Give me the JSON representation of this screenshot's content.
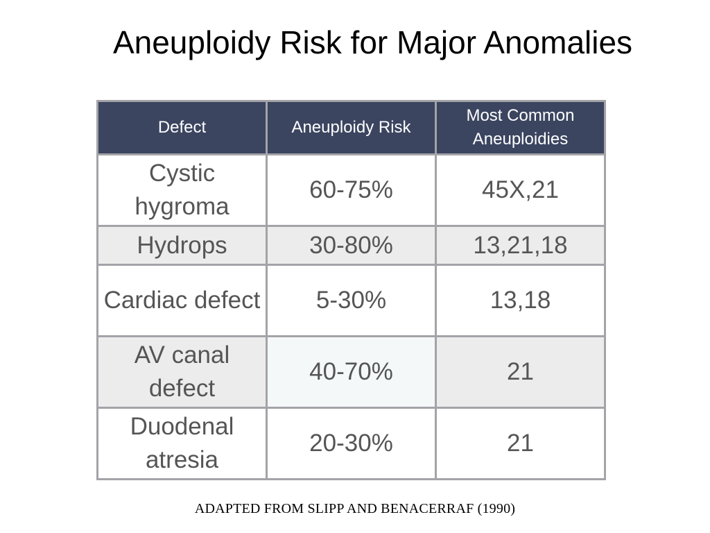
{
  "title": "Aneuploidy Risk for Major Anomalies",
  "table": {
    "headers": [
      "Defect",
      "Aneuploidy Risk",
      "Most Common Aneuploidies"
    ],
    "rows": [
      {
        "defect": "Cystic hygroma",
        "risk": "60-75%",
        "aneuploidies": "45X,21"
      },
      {
        "defect": "Hydrops",
        "risk": "30-80%",
        "aneuploidies": "13,21,18"
      },
      {
        "defect": "Cardiac defect",
        "risk": "5-30%",
        "aneuploidies": "13,18"
      },
      {
        "defect": "AV canal defect",
        "risk": "40-70%",
        "aneuploidies": "21"
      },
      {
        "defect": "Duodenal atresia",
        "risk": "20-30%",
        "aneuploidies": "21"
      }
    ]
  },
  "caption": "ADAPTED FROM SLIPP AND BENACERRAF (1990)",
  "colors": {
    "header_background": "#3b4560",
    "header_text": "#ffffff",
    "cell_text": "#555555",
    "shaded_row": "#ececec",
    "border": "#a3a3a8"
  }
}
